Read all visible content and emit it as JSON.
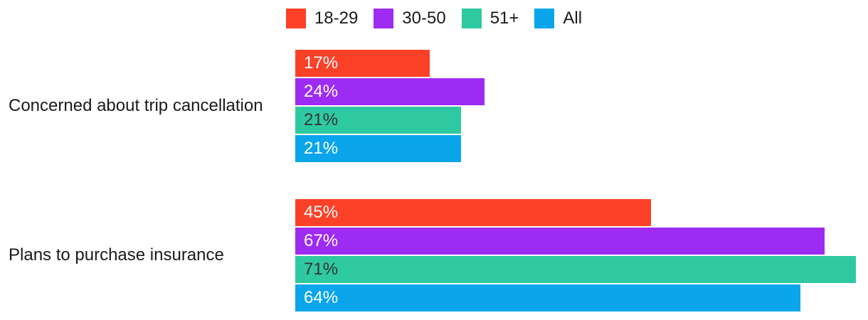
{
  "chart_data": {
    "type": "bar",
    "orientation": "horizontal",
    "title": "",
    "xlabel": "",
    "ylabel": "",
    "value_suffix": "%",
    "xlim": [
      0,
      72
    ],
    "grid": false,
    "legend_position": "top-center",
    "background_color": "#FFFFFF",
    "text_color": "#1A1A1A",
    "categories": [
      "Concerned about trip cancellation",
      "Plans to purchase insurance"
    ],
    "series": [
      {
        "name": "18-29",
        "color": "#FC4128",
        "label_color": "#FFFFFF",
        "values": [
          17,
          45
        ]
      },
      {
        "name": "30-50",
        "color": "#9E2BF3",
        "label_color": "#FFFFFF",
        "values": [
          24,
          67
        ]
      },
      {
        "name": "51+",
        "color": "#2FC9A1",
        "label_color": "#333333",
        "values": [
          21,
          71
        ]
      },
      {
        "name": "All",
        "color": "#0AA5EB",
        "label_color": "#FFFFFF",
        "values": [
          21,
          64
        ]
      }
    ],
    "bar_value_labels": [
      "17%",
      "24%",
      "21%",
      "21%",
      "45%",
      "67%",
      "71%",
      "64%"
    ]
  }
}
